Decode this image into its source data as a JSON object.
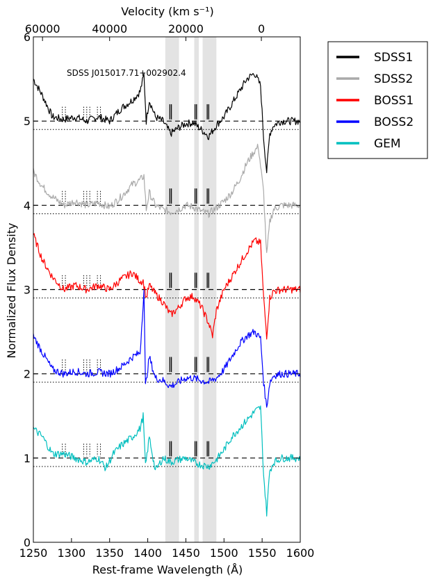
{
  "chart_data": {
    "type": "line",
    "title": "",
    "annotation": "SDSS J015017.71+002902.4",
    "xlabel": "Rest-frame Wavelength (Å)",
    "ylabel": "Normalized Flux Density",
    "top_xlabel": "Velocity (km s⁻¹)",
    "xlim": [
      1250,
      1600
    ],
    "ylim": [
      0,
      6
    ],
    "xticks": [
      1250,
      1300,
      1350,
      1400,
      1450,
      1500,
      1550,
      1600
    ],
    "yticks": [
      0,
      1,
      2,
      3,
      4,
      5,
      6
    ],
    "top_ticks": [
      {
        "label": "60000",
        "wavelength": 1262
      },
      {
        "label": "40000",
        "wavelength": 1350
      },
      {
        "label": "20000",
        "wavelength": 1450
      },
      {
        "label": "0",
        "wavelength": 1549
      }
    ],
    "shaded_bands": [
      [
        1423,
        1441
      ],
      [
        1461,
        1467
      ],
      [
        1472,
        1490
      ]
    ],
    "legend_position": "outside-right",
    "series": [
      {
        "name": "SDSS1",
        "color": "#000000",
        "offset": 4,
        "points": [
          [
            1250,
            1.5
          ],
          [
            1262,
            1.3
          ],
          [
            1275,
            1.05
          ],
          [
            1290,
            1.02
          ],
          [
            1305,
            1.05
          ],
          [
            1320,
            1.0
          ],
          [
            1335,
            1.05
          ],
          [
            1350,
            1.0
          ],
          [
            1365,
            1.15
          ],
          [
            1380,
            1.25
          ],
          [
            1390,
            1.35
          ],
          [
            1395,
            1.55
          ],
          [
            1398,
            1.0
          ],
          [
            1402,
            1.25
          ],
          [
            1410,
            1.05
          ],
          [
            1420,
            1.0
          ],
          [
            1430,
            0.85
          ],
          [
            1440,
            0.92
          ],
          [
            1450,
            0.97
          ],
          [
            1460,
            0.98
          ],
          [
            1470,
            0.9
          ],
          [
            1480,
            0.82
          ],
          [
            1490,
            0.95
          ],
          [
            1500,
            1.05
          ],
          [
            1510,
            1.2
          ],
          [
            1520,
            1.35
          ],
          [
            1530,
            1.5
          ],
          [
            1540,
            1.57
          ],
          [
            1548,
            1.42
          ],
          [
            1552,
            0.8
          ],
          [
            1556,
            0.4
          ],
          [
            1560,
            0.85
          ],
          [
            1565,
            0.95
          ],
          [
            1575,
            1.0
          ],
          [
            1590,
            1.0
          ],
          [
            1600,
            1.0
          ]
        ]
      },
      {
        "name": "SDSS2",
        "color": "#aaaaaa",
        "offset": 3,
        "points": [
          [
            1250,
            1.4
          ],
          [
            1262,
            1.22
          ],
          [
            1275,
            1.1
          ],
          [
            1290,
            1.0
          ],
          [
            1305,
            1.05
          ],
          [
            1320,
            1.0
          ],
          [
            1335,
            1.03
          ],
          [
            1350,
            0.98
          ],
          [
            1365,
            1.1
          ],
          [
            1380,
            1.25
          ],
          [
            1390,
            1.3
          ],
          [
            1395,
            1.35
          ],
          [
            1398,
            0.95
          ],
          [
            1402,
            1.15
          ],
          [
            1410,
            1.0
          ],
          [
            1420,
            0.95
          ],
          [
            1430,
            0.92
          ],
          [
            1440,
            0.95
          ],
          [
            1450,
            1.0
          ],
          [
            1460,
            0.98
          ],
          [
            1470,
            0.93
          ],
          [
            1480,
            0.9
          ],
          [
            1490,
            0.97
          ],
          [
            1500,
            1.05
          ],
          [
            1510,
            1.15
          ],
          [
            1520,
            1.3
          ],
          [
            1530,
            1.5
          ],
          [
            1538,
            1.62
          ],
          [
            1545,
            1.7
          ],
          [
            1552,
            1.15
          ],
          [
            1556,
            0.4
          ],
          [
            1560,
            0.8
          ],
          [
            1565,
            0.95
          ],
          [
            1575,
            1.0
          ],
          [
            1590,
            1.0
          ],
          [
            1600,
            1.0
          ]
        ]
      },
      {
        "name": "BOSS1",
        "color": "#ff0000",
        "offset": 2,
        "points": [
          [
            1250,
            1.65
          ],
          [
            1262,
            1.35
          ],
          [
            1275,
            1.15
          ],
          [
            1290,
            1.0
          ],
          [
            1305,
            1.05
          ],
          [
            1320,
            1.0
          ],
          [
            1335,
            1.05
          ],
          [
            1350,
            1.0
          ],
          [
            1365,
            1.12
          ],
          [
            1380,
            1.2
          ],
          [
            1390,
            1.1
          ],
          [
            1394,
            1.1
          ],
          [
            1398,
            0.9
          ],
          [
            1402,
            1.05
          ],
          [
            1410,
            0.95
          ],
          [
            1420,
            0.85
          ],
          [
            1430,
            0.7
          ],
          [
            1440,
            0.78
          ],
          [
            1450,
            0.9
          ],
          [
            1460,
            0.92
          ],
          [
            1470,
            0.8
          ],
          [
            1480,
            0.6
          ],
          [
            1485,
            0.45
          ],
          [
            1490,
            0.75
          ],
          [
            1500,
            1.0
          ],
          [
            1510,
            1.15
          ],
          [
            1520,
            1.3
          ],
          [
            1530,
            1.45
          ],
          [
            1540,
            1.58
          ],
          [
            1548,
            1.55
          ],
          [
            1552,
            0.9
          ],
          [
            1556,
            0.45
          ],
          [
            1560,
            0.9
          ],
          [
            1565,
            0.98
          ],
          [
            1575,
            1.0
          ],
          [
            1590,
            1.0
          ],
          [
            1600,
            1.0
          ]
        ]
      },
      {
        "name": "BOSS2",
        "color": "#0000ff",
        "offset": 1,
        "points": [
          [
            1250,
            1.45
          ],
          [
            1262,
            1.25
          ],
          [
            1275,
            1.05
          ],
          [
            1290,
            1.0
          ],
          [
            1305,
            1.03
          ],
          [
            1320,
            1.0
          ],
          [
            1335,
            1.02
          ],
          [
            1350,
            1.0
          ],
          [
            1365,
            1.08
          ],
          [
            1380,
            1.2
          ],
          [
            1390,
            1.25
          ],
          [
            1395,
            2.0
          ],
          [
            1397,
            0.85
          ],
          [
            1402,
            1.2
          ],
          [
            1410,
            0.95
          ],
          [
            1420,
            0.92
          ],
          [
            1430,
            0.85
          ],
          [
            1440,
            0.9
          ],
          [
            1450,
            0.95
          ],
          [
            1460,
            0.95
          ],
          [
            1470,
            0.92
          ],
          [
            1480,
            0.9
          ],
          [
            1490,
            0.95
          ],
          [
            1500,
            1.05
          ],
          [
            1510,
            1.2
          ],
          [
            1520,
            1.35
          ],
          [
            1530,
            1.45
          ],
          [
            1540,
            1.5
          ],
          [
            1548,
            1.42
          ],
          [
            1552,
            0.9
          ],
          [
            1556,
            0.6
          ],
          [
            1560,
            0.9
          ],
          [
            1565,
            0.98
          ],
          [
            1575,
            1.0
          ],
          [
            1590,
            1.0
          ],
          [
            1600,
            1.0
          ]
        ]
      },
      {
        "name": "GEM",
        "color": "#00bfbf",
        "offset": 0,
        "points": [
          [
            1250,
            1.35
          ],
          [
            1262,
            1.25
          ],
          [
            1275,
            1.05
          ],
          [
            1290,
            1.05
          ],
          [
            1305,
            1.0
          ],
          [
            1320,
            0.95
          ],
          [
            1335,
            1.0
          ],
          [
            1345,
            0.88
          ],
          [
            1355,
            1.05
          ],
          [
            1365,
            1.15
          ],
          [
            1380,
            1.25
          ],
          [
            1390,
            1.35
          ],
          [
            1394,
            1.5
          ],
          [
            1397,
            0.9
          ],
          [
            1402,
            1.25
          ],
          [
            1410,
            0.85
          ],
          [
            1420,
            1.0
          ],
          [
            1430,
            0.95
          ],
          [
            1440,
            0.98
          ],
          [
            1450,
            1.0
          ],
          [
            1460,
            0.95
          ],
          [
            1470,
            0.92
          ],
          [
            1480,
            0.9
          ],
          [
            1490,
            0.98
          ],
          [
            1500,
            1.1
          ],
          [
            1510,
            1.25
          ],
          [
            1520,
            1.35
          ],
          [
            1530,
            1.45
          ],
          [
            1540,
            1.55
          ],
          [
            1548,
            1.6
          ],
          [
            1552,
            0.8
          ],
          [
            1556,
            0.35
          ],
          [
            1560,
            0.85
          ],
          [
            1565,
            0.95
          ],
          [
            1575,
            1.0
          ],
          [
            1590,
            1.0
          ],
          [
            1600,
            1.0
          ]
        ]
      }
    ]
  }
}
